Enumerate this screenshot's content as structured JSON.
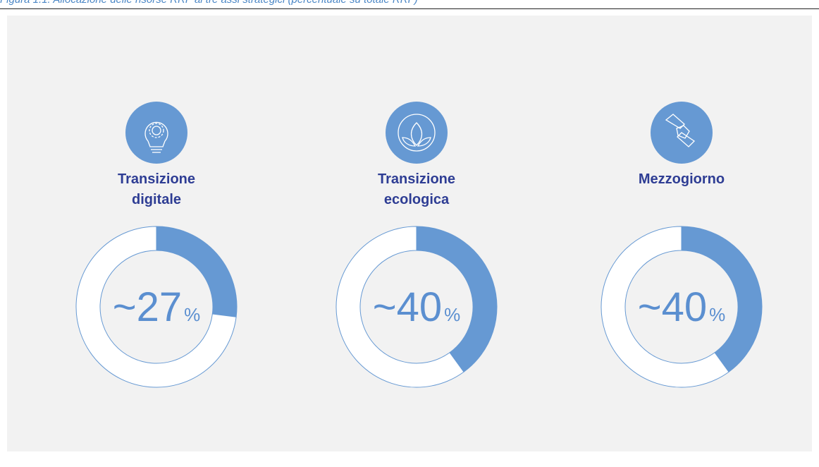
{
  "caption": "Figura 1.1: Allocazione delle risorse RRF ai tre assi strategici (percentuale su totale RRF)",
  "chart_data": [
    {
      "type": "donut",
      "title": "Transizione digitale",
      "values": [
        27,
        73
      ],
      "value_labels": [
        "~27",
        null
      ],
      "unit_label": "%",
      "colors": [
        "#6699d3",
        "#ffffff"
      ]
    },
    {
      "type": "donut",
      "title": "Transizione ecologica",
      "values": [
        40,
        60
      ],
      "value_labels": [
        "~40",
        null
      ],
      "unit_label": "%",
      "colors": [
        "#6699d3",
        "#ffffff"
      ]
    },
    {
      "type": "donut",
      "title": "Mezzogiorno",
      "values": [
        40,
        60
      ],
      "value_labels": [
        "~40",
        null
      ],
      "unit_label": "%",
      "colors": [
        "#6699d3",
        "#ffffff"
      ]
    }
  ]
}
